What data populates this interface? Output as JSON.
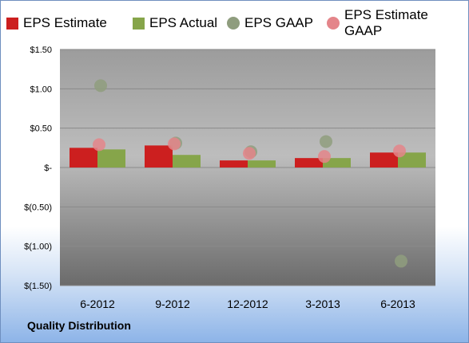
{
  "chart_data": {
    "type": "bar",
    "categories": [
      "6-2012",
      "9-2012",
      "12-2012",
      "3-2013",
      "6-2013"
    ],
    "series": [
      {
        "name": "EPS Estimate",
        "kind": "bar",
        "color": "#cc1f1f",
        "values": [
          0.25,
          0.28,
          0.09,
          0.12,
          0.19
        ]
      },
      {
        "name": "EPS Actual",
        "kind": "bar",
        "color": "#86a54a",
        "values": [
          0.23,
          0.16,
          0.09,
          0.12,
          0.19
        ]
      },
      {
        "name": "EPS GAAP",
        "kind": "marker",
        "color": "#8f9d7e",
        "values": [
          1.04,
          0.31,
          0.2,
          0.33,
          -1.19
        ]
      },
      {
        "name": "EPS Estimate GAAP",
        "kind": "marker",
        "color": "#e4858a",
        "values": [
          0.29,
          0.3,
          0.18,
          0.14,
          0.21
        ]
      }
    ],
    "ylim": [
      -1.5,
      1.5
    ],
    "y_ticks": [
      {
        "value": 1.5,
        "label": "$1.50"
      },
      {
        "value": 1.0,
        "label": "$1.00"
      },
      {
        "value": 0.5,
        "label": "$0.50"
      },
      {
        "value": 0,
        "label": "$-"
      },
      {
        "value": -0.5,
        "label": "$(0.50)"
      },
      {
        "value": -1.0,
        "label": "$(1.00)"
      },
      {
        "value": -1.5,
        "label": "$(1.50)"
      }
    ],
    "grid": true,
    "legend_position": "top",
    "plot_background": "#9e9e9e"
  },
  "company_name": "Quality Distribution"
}
